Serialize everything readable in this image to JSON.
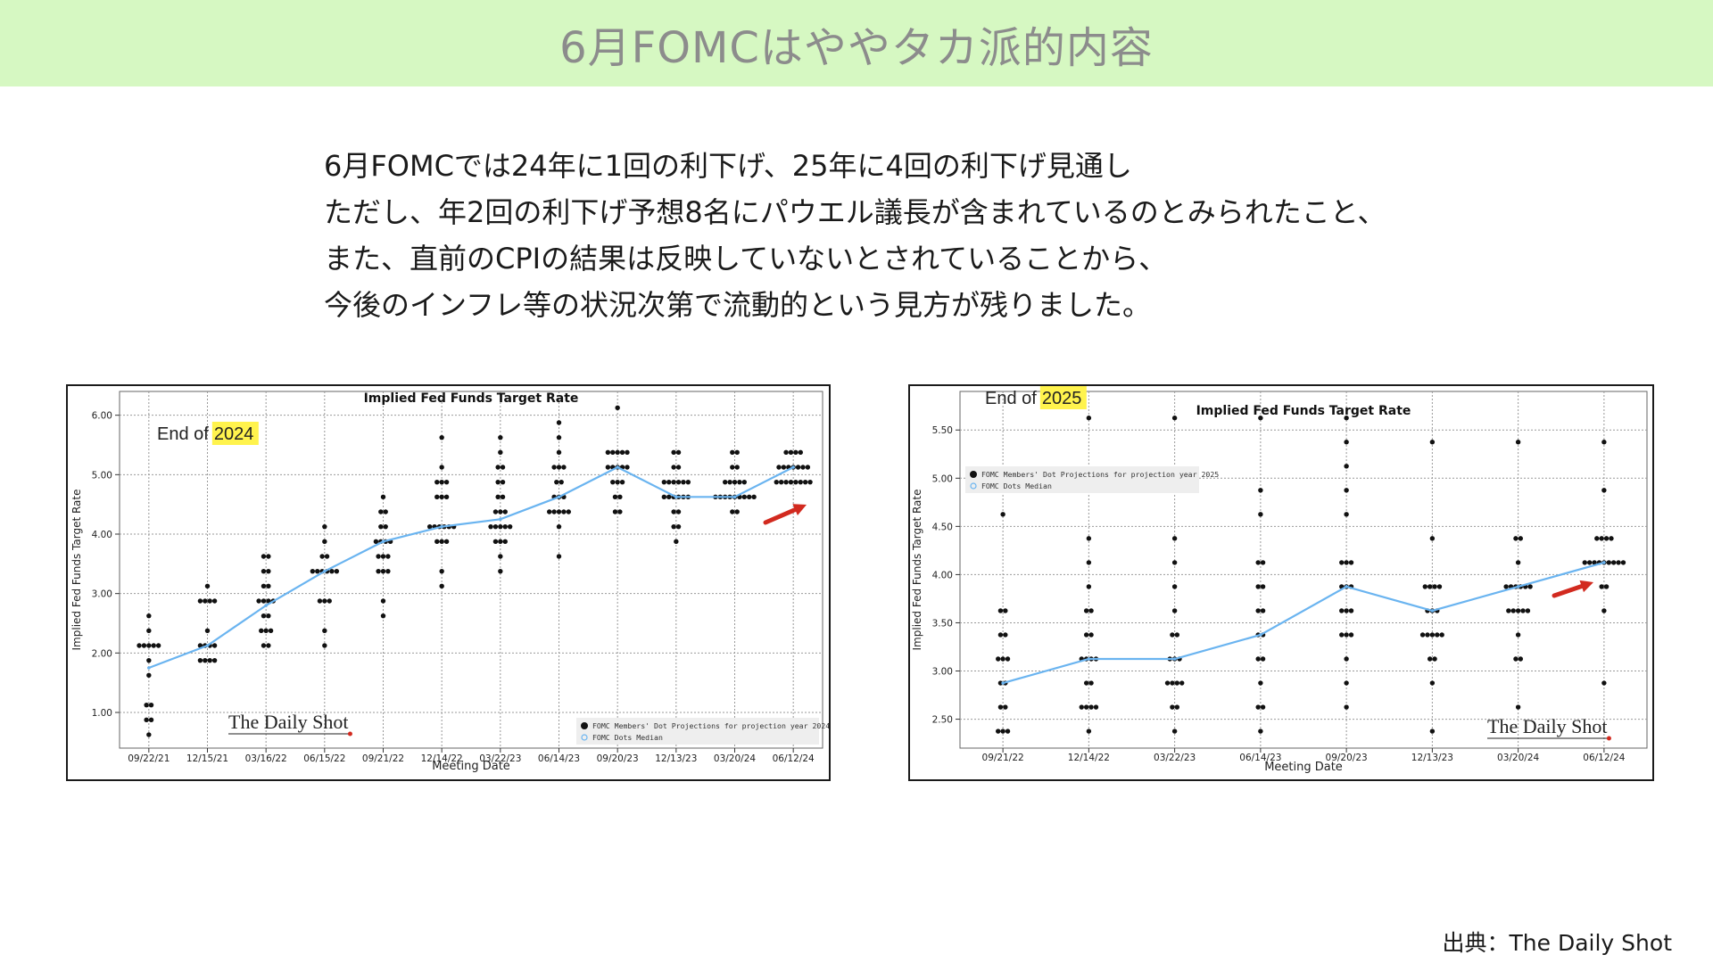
{
  "header": {
    "title": "6月FOMCはややタカ派的内容"
  },
  "body": {
    "lines": [
      "6月FOMCでは24年に1回の利下げ、25年に4回の利下げ見通し",
      "ただし、年2回の利下げ予想8名にパウエル議長が含まれているのとみられたこと、",
      "また、直前のCPIの結果は反映していないとされていることから、",
      "今後のインフレ等の状況次第で流動的という見方が残りました。"
    ]
  },
  "footer": {
    "source": "出典：The Daily Shot"
  },
  "colors": {
    "title_band": "#d6f8c2",
    "median_line": "#6ab4f0",
    "dots": "#111111",
    "arrow": "#d22a1f",
    "highlight": "#fff34d"
  },
  "chart_data": [
    {
      "type": "scatter",
      "title": "Implied Fed Funds Target Rate",
      "annotation_prefix": "End of",
      "annotation_year": "2024",
      "xlabel": "Meeting Date",
      "ylabel": "Implied Fed Funds Target Rate",
      "categories": [
        "09/22/21",
        "12/15/21",
        "03/16/22",
        "06/15/22",
        "09/21/22",
        "12/14/22",
        "03/22/23",
        "06/14/23",
        "09/20/23",
        "12/13/23",
        "03/20/24",
        "06/12/24"
      ],
      "ylim": [
        0.4,
        6.4
      ],
      "yticks": [
        1.0,
        2.0,
        3.0,
        4.0,
        5.0,
        6.0
      ],
      "ytick_labels": [
        "1.00",
        "2.00",
        "3.00",
        "4.00",
        "5.00",
        "6.00"
      ],
      "grid": true,
      "legend_position": "bottom-right",
      "legend": [
        "FOMC Members' Dot Projections for projection year 2024",
        "FOMC Dots Median"
      ],
      "watermark": "The Daily Shot",
      "series": [
        {
          "name": "FOMC Members' Dot Projections for projection year 2024",
          "kind": "dots",
          "points": [
            [
              [
                0.625,
                1
              ],
              [
                0.875,
                2
              ],
              [
                1.125,
                2
              ],
              [
                1.625,
                1
              ],
              [
                1.875,
                1
              ],
              [
                2.125,
                5
              ],
              [
                2.375,
                1
              ],
              [
                2.625,
                1
              ]
            ],
            [
              [
                1.875,
                4
              ],
              [
                2.125,
                4
              ],
              [
                2.375,
                1
              ],
              [
                2.875,
                4
              ],
              [
                3.125,
                1
              ]
            ],
            [
              [
                2.125,
                2
              ],
              [
                2.375,
                3
              ],
              [
                2.625,
                2
              ],
              [
                2.875,
                4
              ],
              [
                3.125,
                2
              ],
              [
                3.375,
                2
              ],
              [
                3.625,
                2
              ]
            ],
            [
              [
                2.125,
                1
              ],
              [
                2.375,
                1
              ],
              [
                2.875,
                3
              ],
              [
                3.375,
                6
              ],
              [
                3.625,
                2
              ],
              [
                3.875,
                1
              ],
              [
                4.125,
                1
              ]
            ],
            [
              [
                2.625,
                1
              ],
              [
                2.875,
                1
              ],
              [
                3.375,
                3
              ],
              [
                3.625,
                3
              ],
              [
                3.875,
                4
              ],
              [
                4.125,
                2
              ],
              [
                4.375,
                2
              ],
              [
                4.625,
                1
              ]
            ],
            [
              [
                3.125,
                1
              ],
              [
                3.375,
                1
              ],
              [
                3.875,
                3
              ],
              [
                4.125,
                6
              ],
              [
                4.625,
                3
              ],
              [
                4.875,
                3
              ],
              [
                5.125,
                1
              ],
              [
                5.625,
                1
              ]
            ],
            [
              [
                3.375,
                1
              ],
              [
                3.625,
                1
              ],
              [
                3.875,
                3
              ],
              [
                4.125,
                5
              ],
              [
                4.375,
                3
              ],
              [
                4.625,
                2
              ],
              [
                4.875,
                2
              ],
              [
                5.125,
                2
              ],
              [
                5.375,
                1
              ],
              [
                5.625,
                1
              ]
            ],
            [
              [
                3.625,
                1
              ],
              [
                4.125,
                1
              ],
              [
                4.375,
                5
              ],
              [
                4.625,
                3
              ],
              [
                4.875,
                2
              ],
              [
                5.125,
                3
              ],
              [
                5.375,
                1
              ],
              [
                5.625,
                1
              ],
              [
                5.875,
                1
              ]
            ],
            [
              [
                4.375,
                2
              ],
              [
                4.625,
                2
              ],
              [
                4.875,
                3
              ],
              [
                5.125,
                5
              ],
              [
                5.375,
                5
              ],
              [
                6.125,
                1
              ]
            ],
            [
              [
                3.875,
                1
              ],
              [
                4.125,
                2
              ],
              [
                4.375,
                2
              ],
              [
                4.625,
                6
              ],
              [
                4.875,
                6
              ],
              [
                5.125,
                2
              ],
              [
                5.375,
                2
              ]
            ],
            [
              [
                4.375,
                2
              ],
              [
                4.625,
                9
              ],
              [
                4.875,
                5
              ],
              [
                5.125,
                2
              ],
              [
                5.375,
                2
              ]
            ],
            [
              [
                4.875,
                8
              ],
              [
                5.125,
                7
              ],
              [
                5.375,
                4
              ]
            ]
          ]
        },
        {
          "name": "FOMC Dots Median",
          "kind": "line",
          "values": [
            1.75,
            2.125,
            2.8,
            3.375,
            3.875,
            4.125,
            4.25,
            4.625,
            5.125,
            4.625,
            4.625,
            5.125
          ]
        }
      ]
    },
    {
      "type": "scatter",
      "title": "Implied Fed Funds Target Rate",
      "annotation_prefix": "End of",
      "annotation_year": "2025",
      "xlabel": "Meeting Date",
      "ylabel": "Implied Fed Funds Target Rate",
      "categories": [
        "09/21/22",
        "12/14/22",
        "03/22/23",
        "06/14/23",
        "09/20/23",
        "12/13/23",
        "03/20/24",
        "06/12/24"
      ],
      "ylim": [
        2.2,
        5.9
      ],
      "yticks": [
        2.5,
        3.0,
        3.5,
        4.0,
        4.5,
        5.0,
        5.5
      ],
      "ytick_labels": [
        "2.50",
        "3.00",
        "3.50",
        "4.00",
        "4.50",
        "5.00",
        "5.50"
      ],
      "grid": true,
      "legend_position": "top-left",
      "legend": [
        "FOMC Members' Dot Projections for projection year 2025",
        "FOMC Dots Median"
      ],
      "watermark": "The Daily Shot",
      "series": [
        {
          "name": "FOMC Members' Dot Projections for projection year 2025",
          "kind": "dots",
          "points": [
            [
              [
                2.375,
                3
              ],
              [
                2.625,
                2
              ],
              [
                2.875,
                2
              ],
              [
                3.125,
                3
              ],
              [
                3.375,
                2
              ],
              [
                3.625,
                2
              ],
              [
                4.625,
                1
              ]
            ],
            [
              [
                2.375,
                1
              ],
              [
                2.625,
                4
              ],
              [
                2.875,
                2
              ],
              [
                3.125,
                4
              ],
              [
                3.375,
                2
              ],
              [
                3.625,
                2
              ],
              [
                3.875,
                1
              ],
              [
                4.125,
                1
              ],
              [
                4.375,
                1
              ],
              [
                5.625,
                1
              ]
            ],
            [
              [
                2.375,
                1
              ],
              [
                2.625,
                2
              ],
              [
                2.875,
                4
              ],
              [
                3.125,
                3
              ],
              [
                3.375,
                2
              ],
              [
                3.625,
                1
              ],
              [
                3.875,
                1
              ],
              [
                4.125,
                1
              ],
              [
                4.375,
                1
              ],
              [
                5.625,
                1
              ]
            ],
            [
              [
                2.375,
                1
              ],
              [
                2.625,
                2
              ],
              [
                2.875,
                1
              ],
              [
                3.125,
                2
              ],
              [
                3.375,
                2
              ],
              [
                3.625,
                2
              ],
              [
                3.875,
                2
              ],
              [
                4.125,
                2
              ],
              [
                4.625,
                1
              ],
              [
                4.875,
                1
              ],
              [
                5.625,
                1
              ]
            ],
            [
              [
                2.625,
                1
              ],
              [
                2.875,
                1
              ],
              [
                3.125,
                1
              ],
              [
                3.375,
                3
              ],
              [
                3.625,
                3
              ],
              [
                3.875,
                3
              ],
              [
                4.125,
                3
              ],
              [
                4.625,
                1
              ],
              [
                4.875,
                1
              ],
              [
                5.125,
                1
              ],
              [
                5.375,
                1
              ],
              [
                5.625,
                1
              ]
            ],
            [
              [
                2.375,
                1
              ],
              [
                2.875,
                1
              ],
              [
                3.125,
                2
              ],
              [
                3.375,
                5
              ],
              [
                3.625,
                3
              ],
              [
                3.875,
                4
              ],
              [
                4.375,
                1
              ],
              [
                5.375,
                1
              ]
            ],
            [
              [
                2.625,
                1
              ],
              [
                3.125,
                2
              ],
              [
                3.375,
                1
              ],
              [
                3.625,
                5
              ],
              [
                3.875,
                6
              ],
              [
                4.125,
                1
              ],
              [
                4.375,
                2
              ],
              [
                5.375,
                1
              ]
            ],
            [
              [
                2.875,
                1
              ],
              [
                3.625,
                1
              ],
              [
                3.875,
                2
              ],
              [
                4.125,
                9
              ],
              [
                4.375,
                4
              ],
              [
                4.875,
                1
              ],
              [
                5.375,
                1
              ]
            ]
          ]
        },
        {
          "name": "FOMC Dots Median",
          "kind": "line",
          "values": [
            2.875,
            3.125,
            3.125,
            3.375,
            3.875,
            3.625,
            3.875,
            4.125
          ]
        }
      ]
    }
  ]
}
